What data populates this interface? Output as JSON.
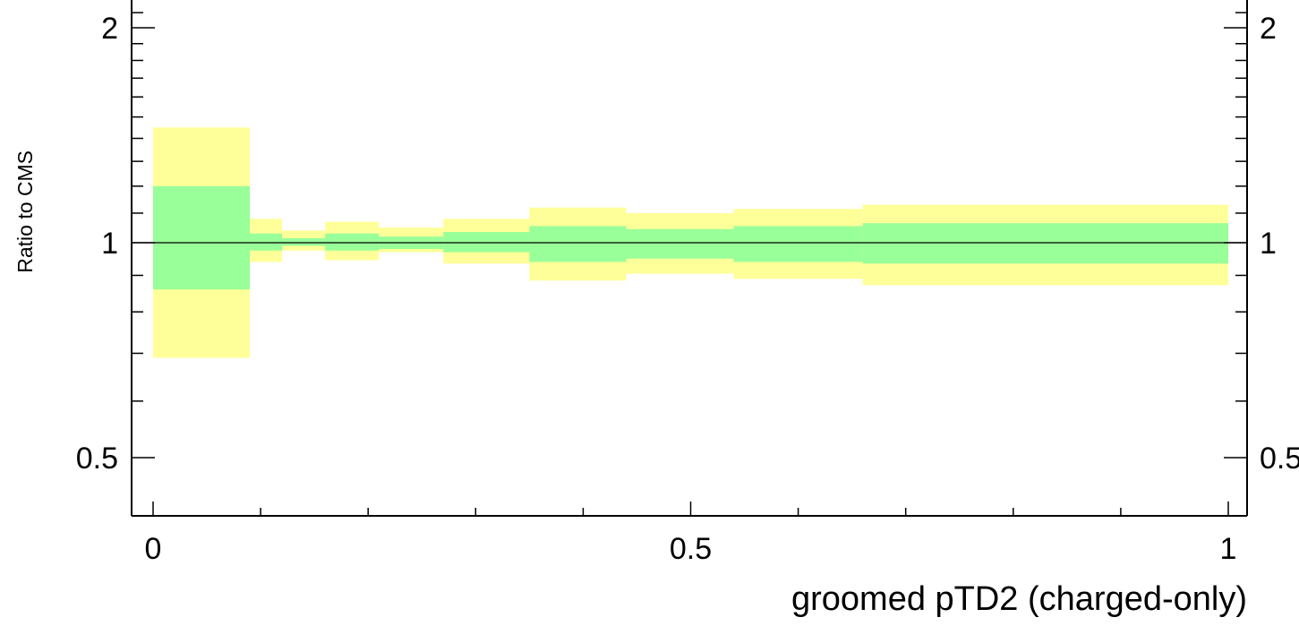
{
  "chart_data": {
    "type": "area",
    "title": "",
    "xlabel": "groomed pTD2 (charged-only)",
    "ylabel": "Ratio to CMS",
    "xlim": [
      -0.02,
      1.0
    ],
    "ylim": [
      0.35,
      2.3
    ],
    "ylog": true,
    "reference_line": 1,
    "x_major_ticks": [
      {
        "value": 0,
        "label": "0"
      },
      {
        "value": 0.5,
        "label": "0.5"
      },
      {
        "value": 1,
        "label": "1"
      }
    ],
    "y_major_ticks_left": [
      {
        "value": 0.5,
        "label": "0.5"
      },
      {
        "value": 1,
        "label": "1"
      },
      {
        "value": 2,
        "label": "2"
      }
    ],
    "y_major_ticks_right": [
      {
        "value": 0.5,
        "label": "0.5"
      },
      {
        "value": 1,
        "label": "1"
      },
      {
        "value": 2,
        "label": "2"
      }
    ],
    "bin_edges": [
      0,
      0.09,
      0.12,
      0.16,
      0.21,
      0.27,
      0.35,
      0.44,
      0.54,
      0.66,
      1.0
    ],
    "bands": [
      {
        "name": "",
        "color": "#ffff99",
        "lower": [
          0.69,
          0.94,
          0.975,
          0.945,
          0.97,
          0.935,
          0.885,
          0.905,
          0.89,
          0.872
        ],
        "upper": [
          1.45,
          1.08,
          1.04,
          1.07,
          1.05,
          1.08,
          1.12,
          1.1,
          1.115,
          1.13
        ]
      },
      {
        "name": "",
        "color": "#99ff99",
        "lower": [
          0.86,
          0.975,
          0.99,
          0.975,
          0.98,
          0.97,
          0.94,
          0.95,
          0.94,
          0.935
        ],
        "upper": [
          1.2,
          1.03,
          1.015,
          1.03,
          1.02,
          1.035,
          1.055,
          1.045,
          1.055,
          1.065
        ]
      }
    ]
  }
}
